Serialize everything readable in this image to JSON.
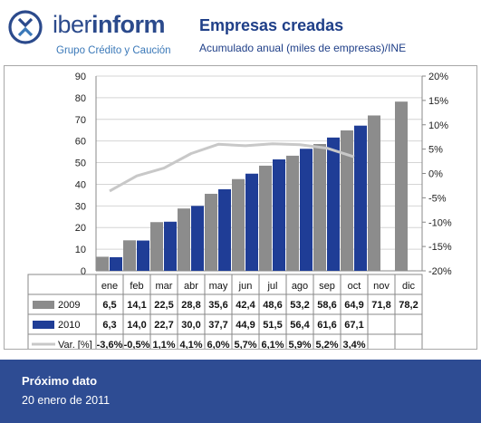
{
  "brand": {
    "name_light": "iber",
    "name_bold": "inform",
    "tagline": "Grupo Crédito y Caución"
  },
  "header": {
    "title": "Empresas creadas",
    "subtitle": "Acumulado anual (miles de empresas)/INE"
  },
  "colors": {
    "series_2009": "#8c8c8c",
    "series_2010": "#1f3d96",
    "var_line": "#c8c8c8",
    "footer_bg": "#2e4c93",
    "brand_blue": "#2b4a8c"
  },
  "chart_data": {
    "type": "bar",
    "categories": [
      "ene",
      "feb",
      "mar",
      "abr",
      "may",
      "jun",
      "jul",
      "ago",
      "sep",
      "oct",
      "nov",
      "dic"
    ],
    "ylim": [
      0,
      90
    ],
    "yticks": [
      "0",
      "10",
      "20",
      "30",
      "40",
      "50",
      "60",
      "70",
      "80",
      "90"
    ],
    "y2lim": [
      -20,
      20
    ],
    "y2ticks": [
      "-20%",
      "-15%",
      "-10%",
      "-5%",
      "0%",
      "5%",
      "10%",
      "15%",
      "20%"
    ],
    "grid": "horizontal",
    "series": [
      {
        "name": "2009",
        "type": "bar",
        "values": [
          6.5,
          14.1,
          22.5,
          28.8,
          35.6,
          42.4,
          48.6,
          53.2,
          58.6,
          64.9,
          71.8,
          78.2
        ],
        "labels": [
          "6,5",
          "14,1",
          "22,5",
          "28,8",
          "35,6",
          "42,4",
          "48,6",
          "53,2",
          "58,6",
          "64,9",
          "71,8",
          "78,2"
        ]
      },
      {
        "name": "2010",
        "type": "bar",
        "values": [
          6.3,
          14.0,
          22.7,
          30.0,
          37.7,
          44.9,
          51.5,
          56.4,
          61.6,
          67.1,
          null,
          null
        ],
        "labels": [
          "6,3",
          "14,0",
          "22,7",
          "30,0",
          "37,7",
          "44,9",
          "51,5",
          "56,4",
          "61,6",
          "67,1",
          "",
          ""
        ]
      },
      {
        "name": "Var. [%]",
        "type": "line",
        "axis": "secondary",
        "values": [
          -3.6,
          -0.5,
          1.1,
          4.1,
          6.0,
          5.7,
          6.1,
          5.9,
          5.2,
          3.4,
          null,
          null
        ],
        "labels": [
          "-3,6%",
          "-0,5%",
          "1,1%",
          "4,1%",
          "6,0%",
          "5,7%",
          "6,1%",
          "5,9%",
          "5,2%",
          "3,4%",
          "",
          ""
        ]
      }
    ]
  },
  "footer": {
    "label": "Próximo dato",
    "date": "20 enero de 2011"
  }
}
